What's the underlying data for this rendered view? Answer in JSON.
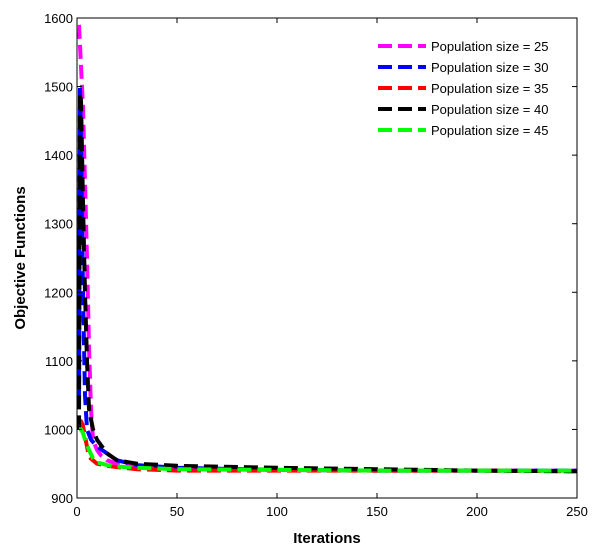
{
  "chart_data": {
    "type": "line",
    "title": "",
    "xlabel": "Iterations",
    "ylabel": "Objective Functions",
    "xlim": [
      0,
      250
    ],
    "ylim": [
      900,
      1600
    ],
    "xticks": [
      0,
      50,
      100,
      150,
      200,
      250
    ],
    "yticks": [
      900,
      1000,
      1100,
      1200,
      1300,
      1400,
      1500,
      1600
    ],
    "grid": false,
    "legend_position": "top-right",
    "series": [
      {
        "name": "Population size = 25",
        "color": "#ff00ff",
        "x": [
          1,
          3,
          5,
          6,
          7,
          8,
          10,
          12,
          15,
          20,
          30,
          50,
          100,
          150,
          200,
          250
        ],
        "y": [
          1590,
          1470,
          1250,
          1120,
          1030,
          985,
          970,
          962,
          955,
          950,
          946,
          943,
          941,
          940,
          940,
          940
        ]
      },
      {
        "name": "Population size = 30",
        "color": "#0000ff",
        "x": [
          1,
          1.5,
          2,
          3,
          4,
          5,
          7,
          10,
          15,
          20,
          30,
          50,
          100,
          150,
          200,
          250
        ],
        "y": [
          1040,
          1500,
          1420,
          1200,
          1050,
          1000,
          985,
          975,
          965,
          955,
          948,
          944,
          941,
          940,
          940,
          940
        ]
      },
      {
        "name": "Population size = 35",
        "color": "#ff0000",
        "x": [
          1,
          2,
          3,
          4,
          5,
          6,
          8,
          10,
          15,
          20,
          30,
          50,
          100,
          150,
          200,
          250
        ],
        "y": [
          1010,
          1012,
          1005,
          990,
          975,
          960,
          955,
          950,
          947,
          945,
          942,
          940,
          940,
          940,
          940,
          939
        ]
      },
      {
        "name": "Population size = 40",
        "color": "#000000",
        "x": [
          1,
          1.5,
          2,
          3,
          4,
          5,
          6,
          8,
          10,
          15,
          20,
          30,
          50,
          100,
          150,
          200,
          250
        ],
        "y": [
          1000,
          1490,
          1480,
          1330,
          1200,
          1100,
          1030,
          1000,
          985,
          965,
          955,
          950,
          947,
          944,
          942,
          940,
          939
        ]
      },
      {
        "name": "Population size = 45",
        "color": "#00ff00",
        "x": [
          1,
          2,
          3,
          4,
          6,
          8,
          10,
          15,
          20,
          30,
          50,
          100,
          150,
          200,
          250
        ],
        "y": [
          1000,
          1000,
          995,
          985,
          970,
          958,
          952,
          948,
          946,
          944,
          942,
          941,
          940,
          940,
          940
        ]
      }
    ]
  }
}
